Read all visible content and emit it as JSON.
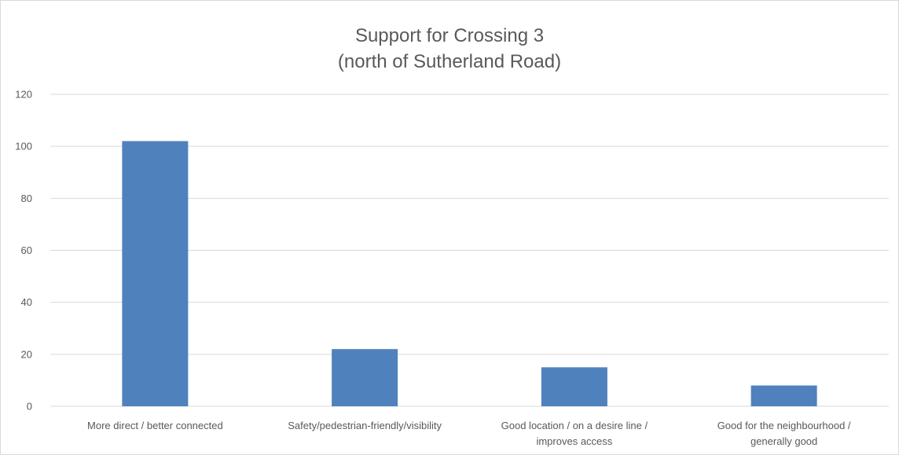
{
  "chart_data": {
    "type": "bar",
    "title": [
      "Support for Crossing 3",
      "(north of Sutherland Road)"
    ],
    "categories": [
      [
        "More direct / better connected"
      ],
      [
        "Safety/pedestrian-friendly/visibility"
      ],
      [
        "Good location / on a desire line /",
        "improves access"
      ],
      [
        "Good for the neighbourhood /",
        "generally good"
      ]
    ],
    "values": [
      102,
      22,
      15,
      8
    ],
    "ylim": [
      0,
      120
    ],
    "yticks": [
      0,
      20,
      40,
      60,
      80,
      100,
      120
    ],
    "xlabel": "",
    "ylabel": "",
    "grid": true,
    "legend": "none",
    "bar_color": "#4f81bd"
  }
}
